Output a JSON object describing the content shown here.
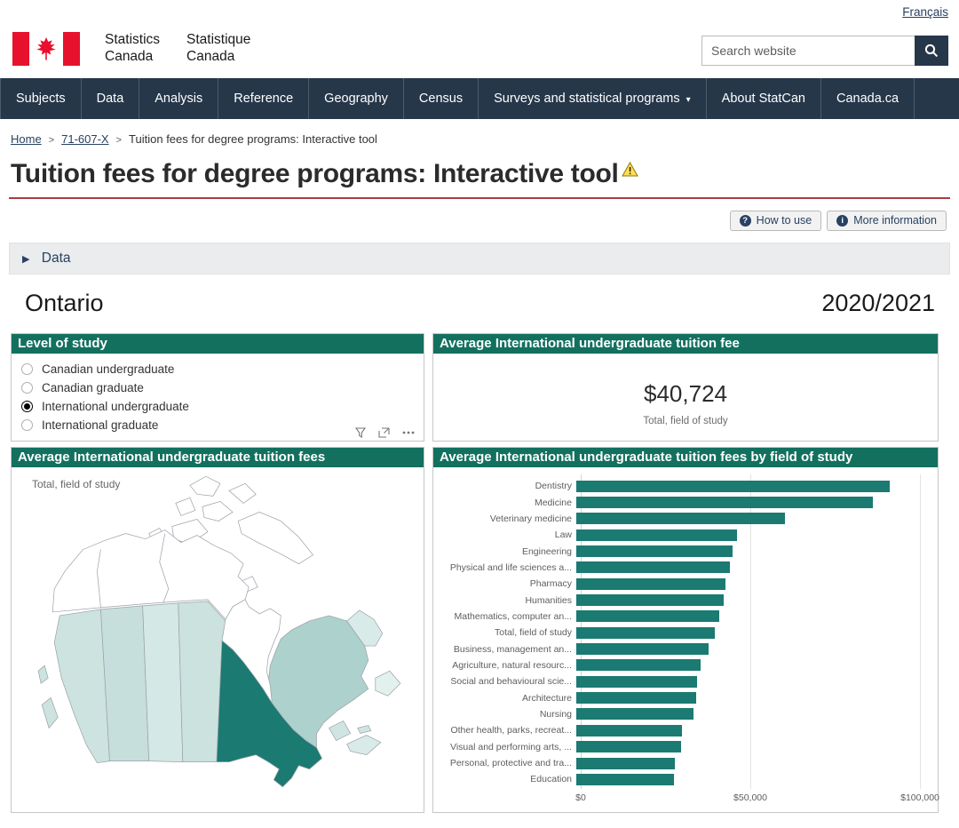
{
  "colors": {
    "navy": "#26374A",
    "link_blue": "#284162",
    "teal_header": "#13705F",
    "teal_bar": "#1B7A72",
    "title_rule": "#AF3C43",
    "accordion_bg": "#EAECED",
    "flag_red": "#E8112D",
    "warning_yellow": "#FFDD57"
  },
  "header": {
    "language_link": "Français",
    "logo": {
      "english_line1": "Statistics",
      "english_line2": "Canada",
      "french_line1": "Statistique",
      "french_line2": "Canada"
    },
    "search": {
      "placeholder": "Search website"
    }
  },
  "nav": {
    "items": [
      {
        "label": "Subjects"
      },
      {
        "label": "Data"
      },
      {
        "label": "Analysis"
      },
      {
        "label": "Reference"
      },
      {
        "label": "Geography"
      },
      {
        "label": "Census"
      },
      {
        "label": "Surveys and statistical programs",
        "dropdown": true
      },
      {
        "label": "About StatCan"
      },
      {
        "label": "Canada.ca"
      }
    ]
  },
  "breadcrumb": {
    "items": [
      {
        "label": "Home",
        "link": true
      },
      {
        "label": "71-607-X",
        "link": true
      },
      {
        "label": "Tuition fees for degree programs: Interactive tool",
        "link": false
      }
    ]
  },
  "page": {
    "title": "Tuition fees for degree programs: Interactive tool"
  },
  "actions": {
    "how_to_use": "How to use",
    "more_information": "More information"
  },
  "data_accordion": {
    "label": "Data"
  },
  "dashboard": {
    "region": "Ontario",
    "year": "2020/2021",
    "level_panel": {
      "title": "Level of study",
      "options": [
        {
          "label": "Canadian undergraduate",
          "selected": false
        },
        {
          "label": "Canadian graduate",
          "selected": false
        },
        {
          "label": "International undergraduate",
          "selected": true
        },
        {
          "label": "International graduate",
          "selected": false
        }
      ]
    },
    "fee_panel": {
      "title": "Average International undergraduate tuition fee",
      "value": "$40,724",
      "caption": "Total, field of study"
    },
    "map_panel": {
      "title": "Average International undergraduate tuition fees",
      "caption": "Total, field of study",
      "region_fills": {
        "territories": "#FFFFFF",
        "british_columbia": "#CCE3E0",
        "alberta": "#C7DFDC",
        "saskatchewan": "#D4E8E5",
        "manitoba": "#CBE2DF",
        "ontario": "#1B7A72",
        "quebec": "#ADD1CD",
        "labrador": "#D9EBE8",
        "newfoundland": "#E2F0EE",
        "new_brunswick": "#CFE5E2",
        "nova_scotia": "#D8EBE8",
        "pei": "#CFE5E2"
      }
    },
    "chart_panel": {
      "title": "Average International undergraduate tuition fees by field of study"
    }
  },
  "chart_data": {
    "type": "bar",
    "orientation": "horizontal",
    "title": "Average International undergraduate tuition fees by field of study",
    "categories": [
      "Dentistry",
      "Medicine",
      "Veterinary medicine",
      "Law",
      "Engineering",
      "Physical and life sciences a...",
      "Pharmacy",
      "Humanities",
      "Mathematics, computer an...",
      "Total, field of study",
      "Business, management an...",
      "Agriculture, natural resourc...",
      "Social and behavioural scie...",
      "Architecture",
      "Nursing",
      "Other health, parks, recreat...",
      "Visual and performing arts, ...",
      "Personal, protective and tra...",
      "Education"
    ],
    "values": [
      92300,
      87500,
      61500,
      47500,
      46000,
      45400,
      44100,
      43400,
      42100,
      40724,
      39100,
      36700,
      35700,
      35300,
      34600,
      31100,
      30900,
      29100,
      28900
    ],
    "xlabel": "",
    "ylabel": "",
    "xlim": [
      0,
      100000
    ],
    "x_ticks": [
      {
        "label": "$0",
        "value": 0
      },
      {
        "label": "$50,000",
        "value": 50000
      },
      {
        "label": "$100,000",
        "value": 100000
      }
    ],
    "grid": true,
    "bar_color": "#1B7A72"
  }
}
